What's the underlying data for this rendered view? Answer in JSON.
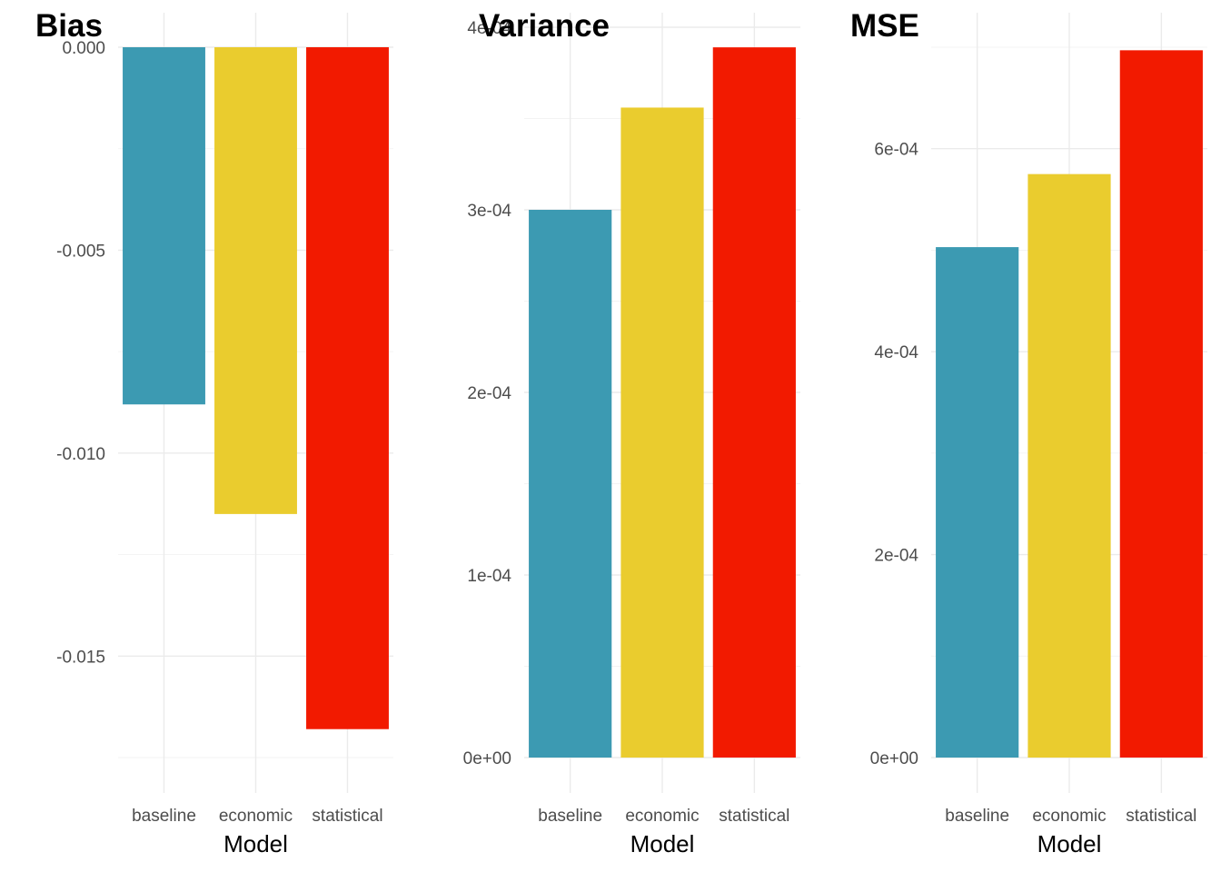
{
  "chart_data": [
    {
      "type": "bar",
      "title": "Bias",
      "xlabel": "Model",
      "ylabel": "",
      "categories": [
        "baseline",
        "economic",
        "statistical"
      ],
      "values": [
        -0.0088,
        -0.0115,
        -0.0168
      ],
      "ylim": [
        -0.0175,
        0.0
      ],
      "yticks": [
        0.0,
        -0.005,
        -0.01,
        -0.015
      ],
      "ytick_labels": [
        "0.000",
        "-0.005",
        "-0.010",
        "-0.015"
      ],
      "colors": [
        "#3C9AB2",
        "#EACC2E",
        "#F21A00"
      ],
      "grid": true,
      "legend": "none"
    },
    {
      "type": "bar",
      "title": "Variance",
      "xlabel": "Model",
      "ylabel": "",
      "categories": [
        "baseline",
        "economic",
        "statistical"
      ],
      "values": [
        0.0003,
        0.000356,
        0.000389
      ],
      "ylim": [
        0.0,
        0.0004
      ],
      "yticks": [
        0.0,
        0.0001,
        0.0002,
        0.0003,
        0.0004
      ],
      "ytick_labels": [
        "0e+00",
        "1e-04",
        "2e-04",
        "3e-04",
        "4e-04"
      ],
      "colors": [
        "#3C9AB2",
        "#EACC2E",
        "#F21A00"
      ],
      "grid": true,
      "legend": "none"
    },
    {
      "type": "bar",
      "title": "MSE",
      "xlabel": "Model",
      "ylabel": "",
      "categories": [
        "baseline",
        "economic",
        "statistical"
      ],
      "values": [
        0.000503,
        0.000575,
        0.000697
      ],
      "ylim": [
        0.0,
        0.0007
      ],
      "yticks": [
        0.0,
        0.0002,
        0.0004,
        0.0006
      ],
      "ytick_labels": [
        "0e+00",
        "2e-04",
        "4e-04",
        "6e-04"
      ],
      "colors": [
        "#3C9AB2",
        "#EACC2E",
        "#F21A00"
      ],
      "grid": true,
      "legend": "none"
    }
  ]
}
